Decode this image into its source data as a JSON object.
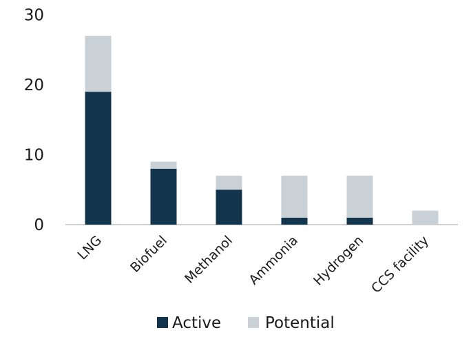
{
  "chart_data": {
    "type": "bar",
    "stacked": true,
    "categories": [
      "LNG",
      "Biofuel",
      "Methanol",
      "Ammonia",
      "Hydrogen",
      "CCS facility"
    ],
    "series": [
      {
        "name": "Active",
        "values": [
          19,
          8,
          5,
          1,
          1,
          0
        ],
        "color": "#12344d"
      },
      {
        "name": "Potential",
        "values": [
          8,
          1,
          2,
          6,
          6,
          2
        ],
        "color": "#c9d0d6"
      }
    ],
    "ylim": [
      0,
      30
    ],
    "yticks": [
      "0",
      "10",
      "20",
      "30"
    ],
    "title": "",
    "xlabel": "",
    "ylabel": "",
    "grid": false,
    "legend_position": "bottom"
  }
}
